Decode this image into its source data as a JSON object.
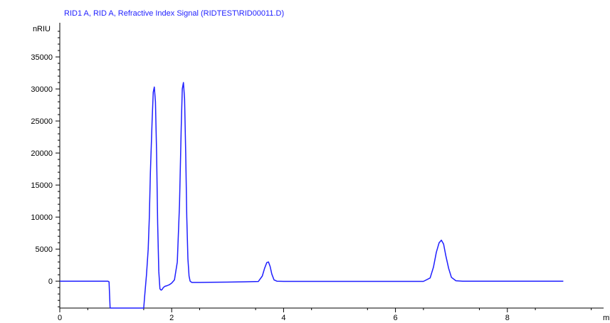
{
  "chart_data": {
    "type": "line",
    "title": "RID1 A, RID A, Refractive Index Signal (RIDTEST\\RID00011.D)",
    "ylabel": "nRIU",
    "xlabel": "mi",
    "xlim": [
      0,
      9.0
    ],
    "ylim": [
      -4200,
      40000
    ],
    "x_ticks": [
      {
        "value": 0,
        "label": "0"
      },
      {
        "value": 2,
        "label": "2"
      },
      {
        "value": 4,
        "label": "4"
      },
      {
        "value": 6,
        "label": "6"
      },
      {
        "value": 8,
        "label": "8"
      }
    ],
    "y_ticks": [
      {
        "value": 0,
        "label": "0"
      },
      {
        "value": 5000,
        "label": "5000"
      },
      {
        "value": 10000,
        "label": "10000"
      },
      {
        "value": 15000,
        "label": "15000"
      },
      {
        "value": 20000,
        "label": "20000"
      },
      {
        "value": 25000,
        "label": "25000"
      },
      {
        "value": 30000,
        "label": "30000"
      },
      {
        "value": 35000,
        "label": "35000"
      }
    ],
    "grid": false,
    "colors": {
      "trace": "#1f1fff",
      "title": "#1f1fff",
      "axis": "#000000"
    },
    "series": [
      {
        "x": [
          0,
          0.5,
          0.86,
          0.88,
          0.9,
          1.5,
          1.52,
          1.55,
          1.58,
          1.6,
          1.62,
          1.65,
          1.67,
          1.69,
          1.71,
          1.73,
          1.75,
          1.77,
          1.79,
          1.81,
          1.83,
          1.85,
          1.88,
          1.92,
          1.96,
          2.0,
          2.05,
          2.1,
          2.14,
          2.17,
          2.19,
          2.21,
          2.23,
          2.25,
          2.27,
          2.29,
          2.31,
          2.33,
          2.36,
          2.4,
          2.5,
          2.7,
          3.0,
          3.3,
          3.55,
          3.62,
          3.66,
          3.7,
          3.73,
          3.76,
          3.79,
          3.83,
          3.88,
          4.0,
          5.0,
          6.0,
          6.5,
          6.62,
          6.68,
          6.73,
          6.78,
          6.82,
          6.86,
          6.9,
          6.95,
          7.0,
          7.08,
          7.2,
          8.0,
          9.0
        ],
        "y": [
          0,
          0,
          0,
          -100,
          -4200,
          -4200,
          -2000,
          1000,
          5000,
          10000,
          17000,
          25000,
          29500,
          30300,
          28000,
          20000,
          9000,
          1500,
          -1200,
          -1400,
          -1300,
          -1000,
          -800,
          -700,
          -550,
          -300,
          200,
          3000,
          12000,
          24000,
          30000,
          31000,
          28500,
          20000,
          10000,
          3500,
          800,
          0,
          -200,
          -200,
          -200,
          -180,
          -150,
          -100,
          -50,
          800,
          2000,
          2900,
          3000,
          2300,
          1100,
          200,
          0,
          -30,
          -30,
          -30,
          -30,
          500,
          2200,
          4500,
          6000,
          6400,
          5800,
          4000,
          2000,
          600,
          60,
          0,
          0,
          0
        ]
      }
    ]
  }
}
